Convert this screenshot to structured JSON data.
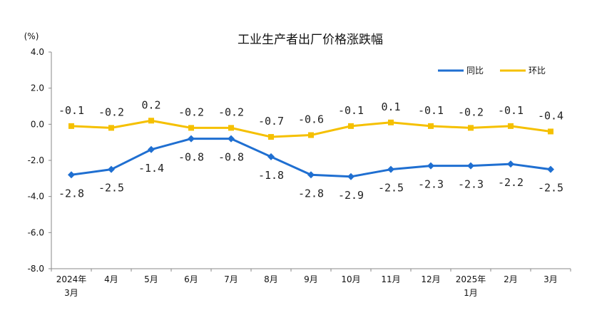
{
  "chart_data": {
    "type": "line",
    "title": "工业生产者出厂价格涨跌幅",
    "ylabel": "(%)",
    "ylim": [
      -8.0,
      4.0
    ],
    "yticks": [
      "4.0",
      "2.0",
      "0.0",
      "-2.0",
      "-4.0",
      "-6.0",
      "-8.0"
    ],
    "ytick_values": [
      4,
      2,
      0,
      -2,
      -4,
      -6,
      -8
    ],
    "categories": [
      [
        "2024年",
        "3月"
      ],
      [
        "4月"
      ],
      [
        "5月"
      ],
      [
        "6月"
      ],
      [
        "7月"
      ],
      [
        "8月"
      ],
      [
        "9月"
      ],
      [
        "10月"
      ],
      [
        "11月"
      ],
      [
        "12月"
      ],
      [
        "2025年",
        "1月"
      ],
      [
        "2月"
      ],
      [
        "3月"
      ]
    ],
    "legend_position": "top-right",
    "grid": false,
    "series": [
      {
        "name": "同比",
        "color": "#1f6fd1",
        "values": [
          -2.8,
          -2.5,
          -1.4,
          -0.8,
          -0.8,
          -1.8,
          -2.8,
          -2.9,
          -2.5,
          -2.3,
          -2.3,
          -2.2,
          -2.5
        ],
        "labels": [
          "-2.8",
          "-2.5",
          "-1.4",
          "-0.8",
          "-0.8",
          "-1.8",
          "-2.8",
          "-2.9",
          "-2.5",
          "-2.3",
          "-2.3",
          "-2.2",
          "-2.5"
        ]
      },
      {
        "name": "环比",
        "color": "#f5c000",
        "values": [
          -0.1,
          -0.2,
          0.2,
          -0.2,
          -0.2,
          -0.7,
          -0.6,
          -0.1,
          0.1,
          -0.1,
          -0.2,
          -0.1,
          -0.4
        ],
        "labels": [
          "-0.1",
          "-0.2",
          "0.2",
          "-0.2",
          "-0.2",
          "-0.7",
          "-0.6",
          "-0.1",
          "0.1",
          "-0.1",
          "-0.2",
          "-0.1",
          "-0.4"
        ]
      }
    ]
  }
}
